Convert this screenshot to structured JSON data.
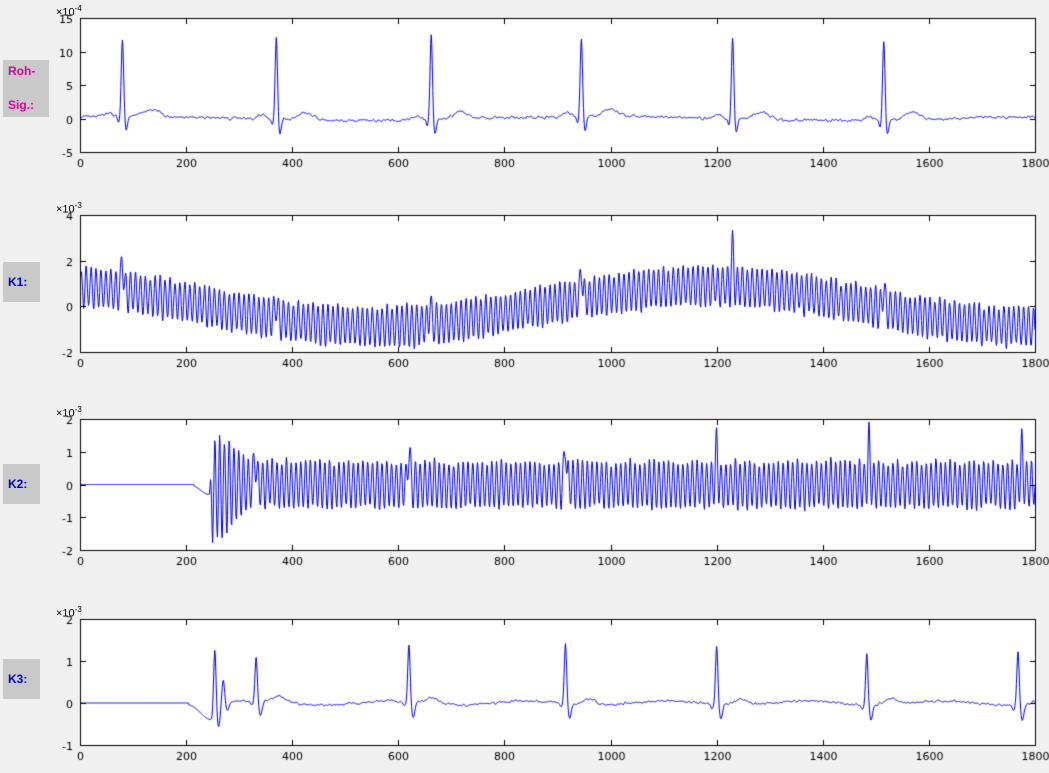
{
  "figure": {
    "background": "#f0f0f0",
    "plot_background": "#ffffff",
    "axis_color": "#000000",
    "label_box_color": "#c9c9c9"
  },
  "chart_data": [
    {
      "type": "line",
      "id": "roh_sig",
      "side_label_lines": [
        "Roh-",
        "Sig.:"
      ],
      "side_label_color": "#dd00a0",
      "scale_base": "×10",
      "scale_exp": "-4",
      "xlim": [
        0,
        1800
      ],
      "x_ticks": [
        0,
        200,
        400,
        600,
        800,
        1000,
        1200,
        1400,
        1600,
        1800
      ],
      "ylim": [
        -5,
        15
      ],
      "y_ticks": [
        -5,
        0,
        5,
        10,
        15
      ],
      "line_color": "#0000dd",
      "seed": 11,
      "signal": {
        "kind": "ecg_raw",
        "beats": [
          80,
          370,
          662,
          945,
          1230,
          1515
        ],
        "peaks": [
          11.5,
          12.3,
          12.7,
          11.8,
          12.0,
          11.8
        ],
        "p_amp": 0.6,
        "q_amp": -1.0,
        "s_amp": -2.2,
        "t_amp": 1.1,
        "noise": 0.35,
        "wiggle_amp": 0.3,
        "wiggle_period": 900
      }
    },
    {
      "type": "line",
      "id": "k1",
      "side_label_lines": [
        "K1:"
      ],
      "side_label_color": "#0000cc",
      "scale_base": "×10",
      "scale_exp": "-3",
      "xlim": [
        0,
        1800
      ],
      "x_ticks": [
        0,
        200,
        400,
        600,
        800,
        1000,
        1200,
        1400,
        1600,
        1800
      ],
      "ylim": [
        -2,
        4
      ],
      "y_ticks": [
        -2,
        0,
        2,
        4
      ],
      "line_color": "#0000dd",
      "seed": 22,
      "signal": {
        "kind": "osc_wander",
        "period": 9.3,
        "amp_base": 0.6,
        "amp_var": 0.5,
        "wander_amp": 0.9,
        "wander_period": 1250,
        "wander_center": 1180,
        "beats": [
          80,
          370,
          660,
          945,
          1230,
          1515
        ],
        "spike_amps": [
          1.5,
          0.8,
          0.9,
          1.3,
          1.8,
          1.0
        ],
        "noise": 0.1
      }
    },
    {
      "type": "line",
      "id": "k2",
      "side_label_lines": [
        "K2:"
      ],
      "side_label_color": "#0000cc",
      "scale_base": "×10",
      "scale_exp": "-3",
      "xlim": [
        0,
        1800
      ],
      "x_ticks": [
        0,
        200,
        400,
        600,
        800,
        1000,
        1200,
        1400,
        1600,
        1800
      ],
      "ylim": [
        -2,
        2
      ],
      "y_ticks": [
        -2,
        -1,
        0,
        1,
        2
      ],
      "line_color": "#0000dd",
      "seed": 33,
      "signal": {
        "kind": "osc_band",
        "start": 215,
        "osc_start": 244,
        "period": 9.0,
        "amp_base": 0.5,
        "amp_var": 0.4,
        "pre_dip": -0.3,
        "transient_center": 262,
        "transient_amp": 1.2,
        "transient_sigma": 25,
        "beats": [
          330,
          620,
          915,
          1200,
          1487,
          1775
        ],
        "spike_amps": [
          1.0,
          1.05,
          1.2,
          1.1,
          1.2,
          1.1
        ],
        "noise": 0.08
      }
    },
    {
      "type": "line",
      "id": "k3",
      "side_label_lines": [
        "K3:"
      ],
      "side_label_color": "#0000cc",
      "scale_base": "×10",
      "scale_exp": "-3",
      "xlim": [
        0,
        1800
      ],
      "x_ticks": [
        0,
        200,
        400,
        600,
        800,
        1000,
        1200,
        1400,
        1600,
        1800
      ],
      "ylim": [
        -1,
        2
      ],
      "y_ticks": [
        -1,
        0,
        1,
        2
      ],
      "line_color": "#0000dd",
      "seed": 44,
      "signal": {
        "kind": "ecg_filtered",
        "start": 205,
        "dip_center": 248,
        "dip_amp": -0.4,
        "dip_sigma_l": 20,
        "dip_sigma_r": 5,
        "transient": [
          [
            254,
            1.5,
            2.2
          ],
          [
            261,
            -0.55,
            3.0
          ],
          [
            270,
            0.55,
            2.5
          ],
          [
            278,
            -0.2,
            3.0
          ]
        ],
        "beats": [
          332,
          620,
          915,
          1200,
          1483,
          1768
        ],
        "peaks": [
          1.05,
          1.35,
          1.42,
          1.4,
          1.22,
          1.3
        ],
        "s_amp": -0.35,
        "t_amp": 0.14,
        "noise": 0.05
      }
    }
  ]
}
